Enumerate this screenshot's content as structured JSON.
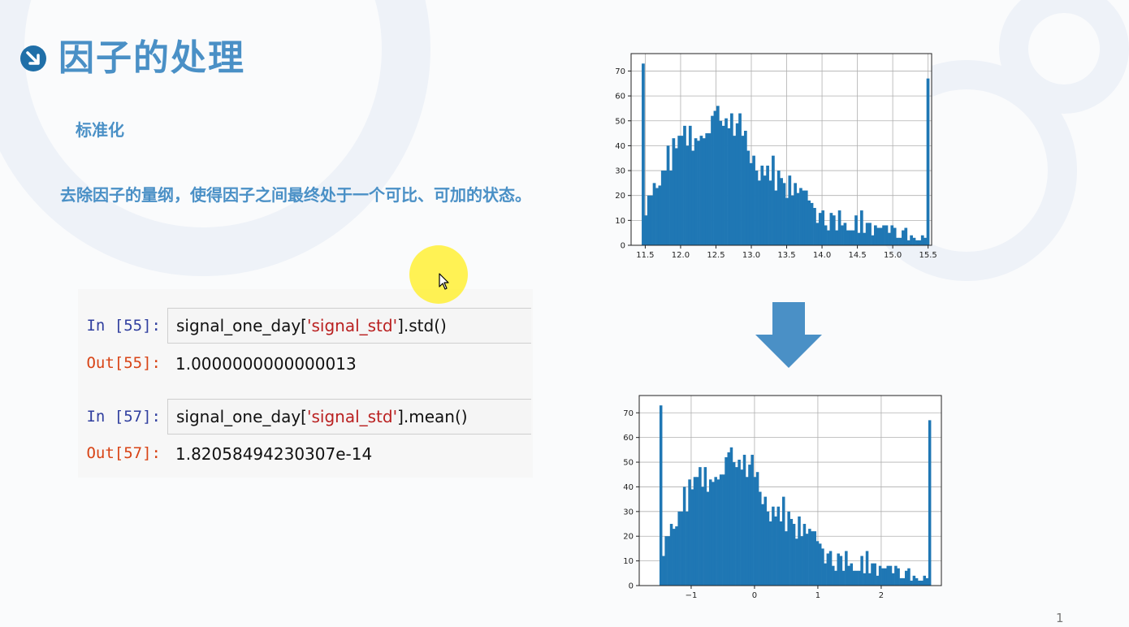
{
  "slide": {
    "title": "因子的处理",
    "subtitle": "标准化",
    "description": "去除因子的量纲，使得因子之间最终处于一个可比、可加的状态。",
    "page_number": "1",
    "accent": "#4a90c6"
  },
  "notebook": {
    "cells": [
      {
        "in_prompt": "In [55]:",
        "code_prefix": "signal_one_day[",
        "code_string": "'signal_std'",
        "code_suffix": "].std()",
        "out_prompt": "Out[55]:",
        "output": "1.0000000000000013"
      },
      {
        "in_prompt": "In [57]:",
        "code_prefix": "signal_one_day[",
        "code_string": "'signal_std'",
        "code_suffix": "].mean()",
        "out_prompt": "Out[57]:",
        "output": "1.82058494230307e-14"
      }
    ]
  },
  "chart_data": [
    {
      "type": "bar",
      "subtype": "histogram",
      "color": "#1f77b4",
      "xlim": [
        11.3,
        15.55
      ],
      "ylim": [
        0,
        77
      ],
      "xticks": [
        11.5,
        12.0,
        12.5,
        13.0,
        13.5,
        14.0,
        14.5,
        15.0,
        15.5
      ],
      "xtick_labels": [
        "11.5",
        "12.0",
        "12.5",
        "13.0",
        "13.5",
        "14.0",
        "14.5",
        "15.0",
        "15.5"
      ],
      "yticks": [
        0,
        10,
        20,
        30,
        40,
        50,
        60,
        70
      ],
      "ytick_labels": [
        "0",
        "10",
        "20",
        "30",
        "40",
        "50",
        "60",
        "70"
      ],
      "grid": true,
      "bin_start": 11.45,
      "bin_width": 0.0391,
      "values": [
        73,
        12,
        20,
        20,
        25,
        23,
        24,
        30,
        30,
        40,
        30,
        43,
        39,
        44,
        44,
        48,
        40,
        48,
        38,
        43,
        42,
        44,
        43,
        45,
        45,
        52,
        54,
        56,
        50,
        48,
        51,
        47,
        53,
        44,
        49,
        53,
        44,
        46,
        38,
        33,
        36,
        30,
        26,
        32,
        28,
        32,
        26,
        36,
        22,
        30,
        27,
        25,
        19,
        28,
        20,
        25,
        21,
        23,
        22,
        22,
        18,
        17,
        15,
        9,
        13,
        14,
        8,
        6,
        13,
        12,
        6,
        14,
        8,
        9,
        6,
        6,
        6,
        12,
        5,
        14,
        5,
        9,
        9,
        4,
        8,
        7,
        7,
        8,
        8,
        5,
        8,
        7,
        3,
        3,
        6,
        7,
        2,
        4,
        3,
        2,
        2,
        4,
        3,
        67
      ]
    },
    {
      "type": "bar",
      "subtype": "histogram",
      "color": "#1f77b4",
      "xlim": [
        -1.82,
        2.95
      ],
      "ylim": [
        0,
        77
      ],
      "xticks": [
        -1,
        0,
        1,
        2
      ],
      "xtick_labels": [
        "−1",
        "0",
        "1",
        "2"
      ],
      "yticks": [
        0,
        10,
        20,
        30,
        40,
        50,
        60,
        70
      ],
      "ytick_labels": [
        "0",
        "10",
        "20",
        "30",
        "40",
        "50",
        "60",
        "70"
      ],
      "grid": true,
      "bin_start": -1.5,
      "bin_width": 0.0412,
      "values": [
        73,
        12,
        20,
        20,
        25,
        23,
        24,
        30,
        30,
        40,
        30,
        43,
        39,
        44,
        44,
        48,
        40,
        48,
        38,
        43,
        42,
        44,
        43,
        45,
        45,
        52,
        54,
        56,
        50,
        48,
        51,
        47,
        53,
        44,
        49,
        53,
        44,
        46,
        38,
        33,
        36,
        30,
        26,
        32,
        28,
        32,
        26,
        36,
        22,
        30,
        27,
        25,
        19,
        28,
        20,
        25,
        21,
        23,
        22,
        22,
        18,
        17,
        15,
        9,
        13,
        14,
        8,
        6,
        13,
        12,
        6,
        14,
        8,
        9,
        6,
        6,
        6,
        12,
        5,
        14,
        5,
        9,
        9,
        4,
        8,
        7,
        7,
        8,
        8,
        5,
        8,
        7,
        3,
        3,
        6,
        7,
        2,
        4,
        3,
        2,
        2,
        4,
        3,
        67
      ]
    }
  ]
}
